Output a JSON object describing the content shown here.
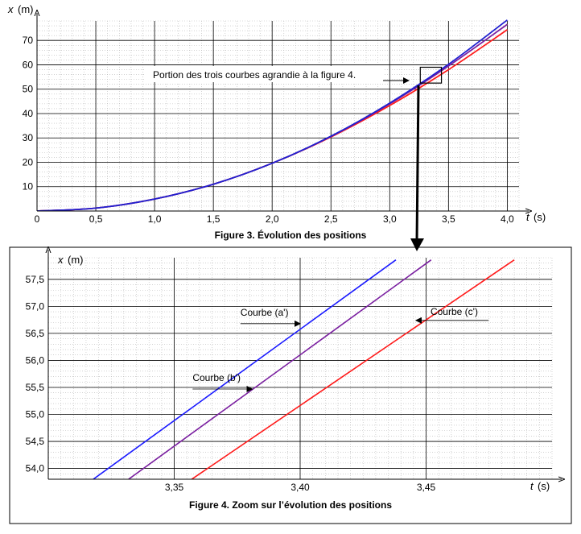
{
  "colors": {
    "curve_a": "#1a1aff",
    "curve_b": "#7a1fa0",
    "curve_c": "#ff1a1a",
    "curve_main_blue": "#2020d0",
    "grid_major": "#000000",
    "grid_minor": "#b8b8b8"
  },
  "chart_data": [
    {
      "type": "line",
      "caption": "Figure 3. Évolution des positions",
      "xlabel": {
        "symbol": "t",
        "unit": "(s)"
      },
      "ylabel": {
        "symbol": "x",
        "unit": "(m)"
      },
      "xlim": [
        0,
        4.1
      ],
      "ylim": [
        0,
        78
      ],
      "x_ticks": [
        0,
        0.5,
        1.0,
        1.5,
        2.0,
        2.5,
        3.0,
        3.5,
        4.0
      ],
      "x_tick_labels": [
        "0",
        "0,5",
        "1,0",
        "1,5",
        "2,0",
        "2,5",
        "3,0",
        "3,5",
        "4,0"
      ],
      "y_ticks": [
        10,
        20,
        30,
        40,
        50,
        60,
        70
      ],
      "y_tick_labels": [
        "10",
        "20",
        "30",
        "40",
        "50",
        "60",
        "70"
      ],
      "grid": true,
      "series": [
        {
          "color_key": "curve_c",
          "x": [
            0,
            0.5,
            1.0,
            1.5,
            2.0,
            2.5,
            3.0,
            3.5,
            4.0
          ],
          "y": [
            0,
            1.2,
            4.9,
            11.0,
            19.6,
            30.4,
            43.3,
            58.0,
            74.4
          ]
        },
        {
          "color_key": "curve_b",
          "x": [
            0,
            0.5,
            1.0,
            1.5,
            2.0,
            2.5,
            3.0,
            3.5,
            4.0
          ],
          "y": [
            0,
            1.2,
            4.9,
            11.0,
            19.6,
            30.6,
            44.0,
            59.5,
            76.6
          ]
        },
        {
          "color_key": "curve_main_blue",
          "x": [
            0,
            0.5,
            1.0,
            1.5,
            2.0,
            2.5,
            3.0,
            3.5,
            4.0
          ],
          "y": [
            0,
            1.2,
            4.9,
            11.0,
            19.6,
            30.7,
            44.3,
            60.2,
            78.4
          ]
        }
      ],
      "annotation": {
        "text": "Portion des trois courbes agrandie à la figure 4.",
        "box_x": [
          3.26,
          3.44
        ],
        "box_y": [
          52.5,
          59.0
        ]
      }
    },
    {
      "type": "line",
      "caption": "Figure 4. Zoom sur l’évolution des positions",
      "xlabel": {
        "symbol": "t",
        "unit": "(s)"
      },
      "ylabel": {
        "symbol": "x",
        "unit": "(m)"
      },
      "xlim": [
        3.3,
        3.5
      ],
      "ylim": [
        53.8,
        57.9
      ],
      "x_ticks": [
        3.35,
        3.4,
        3.45
      ],
      "x_tick_labels": [
        "3,35",
        "3,40",
        "3,45"
      ],
      "y_ticks": [
        54.0,
        54.5,
        55.0,
        55.5,
        56.0,
        56.5,
        57.0,
        57.5
      ],
      "y_tick_labels": [
        "54,0",
        "54,5",
        "55,0",
        "55,5",
        "56,0",
        "56,5",
        "57,0",
        "57,5"
      ],
      "grid": true,
      "series": [
        {
          "name": "Courbe (a')",
          "color_key": "curve_a",
          "x": [
            3.317,
            3.438
          ],
          "y": [
            53.77,
            57.86
          ]
        },
        {
          "name": "Courbe (b')",
          "color_key": "curve_b",
          "x": [
            3.331,
            3.452
          ],
          "y": [
            53.77,
            57.86
          ]
        },
        {
          "name": "Courbe (c')",
          "color_key": "curve_c",
          "x": [
            3.356,
            3.485
          ],
          "y": [
            53.77,
            57.86
          ]
        }
      ],
      "labels": [
        {
          "text": "Courbe (a')",
          "anchor_series": 0,
          "point": [
            3.4,
            56.68
          ]
        },
        {
          "text": "Courbe (b')",
          "anchor_series": 1,
          "point": [
            3.381,
            55.47
          ]
        },
        {
          "text": "Courbe (c')",
          "anchor_series": 2,
          "point": [
            3.446,
            56.74
          ]
        }
      ]
    }
  ]
}
